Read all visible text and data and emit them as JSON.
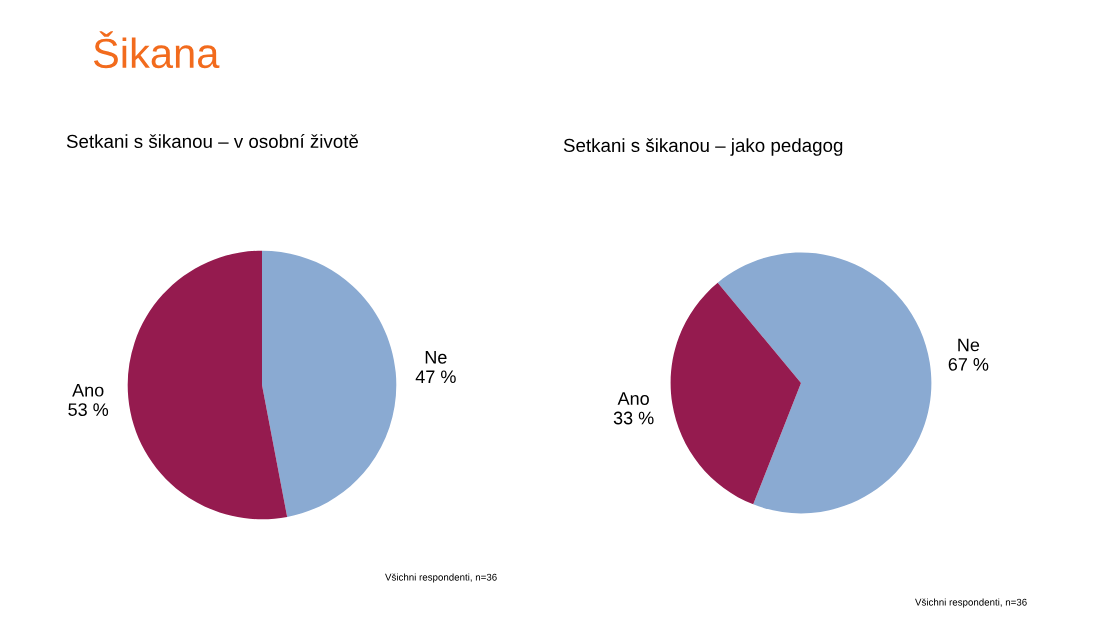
{
  "chart_data": [
    {
      "type": "pie",
      "title": "Setkani s šikanou – v osobní životě",
      "categories": [
        "Ne",
        "Ano"
      ],
      "values": [
        47,
        53
      ],
      "value_labels": [
        "47 %",
        "53 %"
      ],
      "colors": [
        "#8aaad2",
        "#951b4f"
      ],
      "annotations": [
        "Šikana",
        "Všichni respondenti, n=36"
      ]
    },
    {
      "type": "pie",
      "title": "Setkani s šikanou – jako pedagog",
      "categories": [
        "Ne",
        "Ano"
      ],
      "values": [
        67,
        33
      ],
      "value_labels": [
        "67 %",
        "33 %"
      ],
      "colors": [
        "#8aaad2",
        "#951b4f"
      ],
      "annotations": [
        "Všichni respondenti, n=36"
      ]
    }
  ]
}
